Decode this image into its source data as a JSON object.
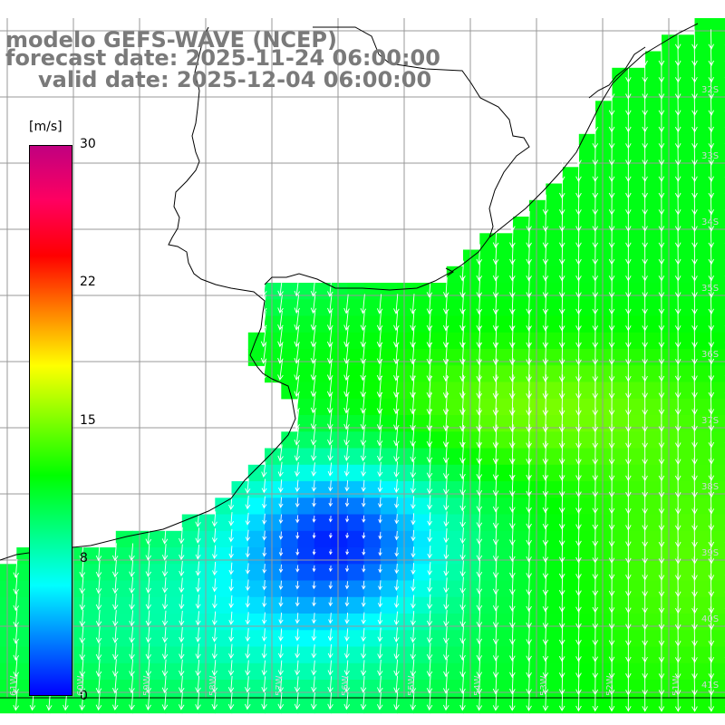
{
  "title": {
    "line1": "modelo GEFS-WAVE (NCEP)",
    "line2": "forecast date: 2025-11-24 06:00:00",
    "line3": "valid date: 2025-12-04 06:00:00"
  },
  "colorbar": {
    "unit": "[m/s]",
    "ticks": [
      "30",
      "22",
      "15",
      "8",
      "0"
    ],
    "min": 0,
    "max": 30,
    "colors": [
      "#0000ff",
      "#0080ff",
      "#00ffff",
      "#00ff80",
      "#00ff00",
      "#80ff00",
      "#ffff00",
      "#ff8000",
      "#ff0000",
      "#ff0060",
      "#c00080"
    ]
  },
  "map": {
    "land_color": "#ffffff",
    "grid_color": "#999999",
    "coast_color": "#000000",
    "arrow_color": "#ffffff",
    "lat_labels": [
      "32S",
      "33S",
      "34S",
      "35S",
      "36S",
      "37S",
      "38S",
      "39S",
      "40S",
      "41S"
    ],
    "lon_labels": [
      "61W",
      "60W",
      "59W",
      "58W",
      "57W",
      "56W",
      "55W",
      "54W",
      "53W",
      "52W",
      "51W"
    ]
  }
}
